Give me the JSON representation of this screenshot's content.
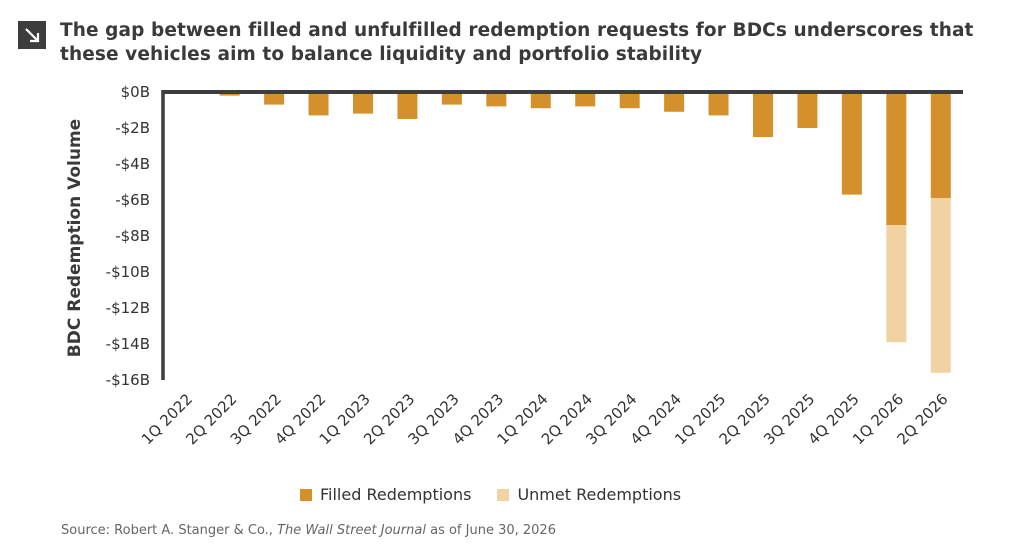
{
  "title": "The gap between filled and unfulfilled redemption requests for BDCs underscores that these vehicles aim to balance liquidity and portfolio stability",
  "source": {
    "prefix": "Source: Robert A. Stanger & Co., ",
    "publication": "The Wall Street Journal",
    "suffix": " as of June 30, 2026"
  },
  "colors": {
    "filled": "#d4902a",
    "unmet": "#f1d3a3",
    "axis": "#3d3d3d"
  },
  "chart_data": {
    "type": "bar",
    "stacked": true,
    "ylabel": "BDC Redemption Volume",
    "ylim": [
      -16,
      0
    ],
    "y_ticks": [
      {
        "value": 0,
        "label": "$0B"
      },
      {
        "value": -2,
        "label": "-$2B"
      },
      {
        "value": -4,
        "label": "-$4B"
      },
      {
        "value": -6,
        "label": "-$6B"
      },
      {
        "value": -8,
        "label": "-$8B"
      },
      {
        "value": -10,
        "label": "-$10B"
      },
      {
        "value": -12,
        "label": "-$12B"
      },
      {
        "value": -14,
        "label": "-$14B"
      },
      {
        "value": -16,
        "label": "-$16B"
      }
    ],
    "categories": [
      "1Q 2022",
      "2Q 2022",
      "3Q 2022",
      "4Q 2022",
      "1Q 2023",
      "2Q 2023",
      "3Q 2023",
      "4Q 2023",
      "1Q 2024",
      "2Q 2024",
      "3Q 2024",
      "4Q 2024",
      "1Q 2025",
      "2Q 2025",
      "3Q 2025",
      "4Q 2025",
      "1Q 2026",
      "2Q 2026"
    ],
    "series": [
      {
        "name": "Filled Redemptions",
        "values": [
          0,
          -0.2,
          -0.7,
          -1.3,
          -1.2,
          -1.5,
          -0.7,
          -0.8,
          -0.9,
          -0.8,
          -0.9,
          -1.1,
          -1.3,
          -2.5,
          -2.0,
          -5.7,
          -7.4,
          -5.9
        ]
      },
      {
        "name": "Unmet Redemptions",
        "values": [
          0,
          0,
          0,
          0,
          0,
          0,
          0,
          0,
          0,
          0,
          0,
          0,
          0,
          0,
          0,
          0,
          -6.5,
          -9.7
        ]
      }
    ],
    "grid": false,
    "legend_position": "bottom"
  }
}
